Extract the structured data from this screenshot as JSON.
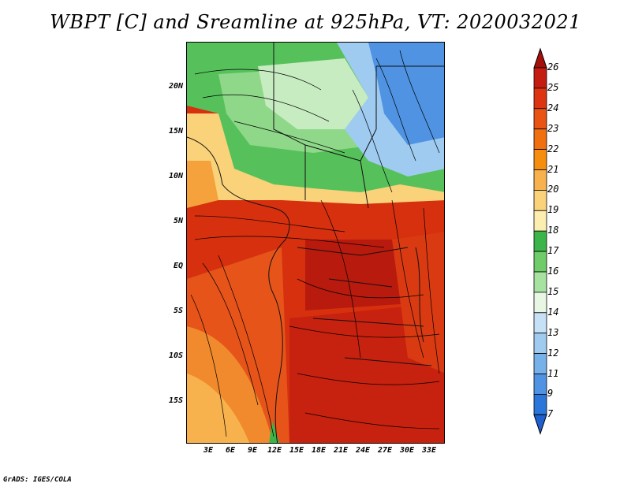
{
  "title": "WBPT [C] and Sreamline at 925hPa, VT: 2020032021",
  "credit": "GrADS: IGES/COLA",
  "map": {
    "lat_labels": [
      "20N",
      "15N",
      "10N",
      "5N",
      "EQ",
      "5S",
      "10S",
      "15S"
    ],
    "lon_labels": [
      "3E",
      "6E",
      "9E",
      "12E",
      "15E",
      "18E",
      "21E",
      "24E",
      "27E",
      "30E",
      "33E"
    ],
    "variable": "Wet-bulb potential temperature",
    "units": "C",
    "level": "925hPa"
  },
  "colorbar": {
    "labels": [
      "26",
      "25",
      "24",
      "23",
      "22",
      "21",
      "20",
      "19",
      "18",
      "17",
      "16",
      "15",
      "14",
      "13",
      "12",
      "11",
      "9",
      "7"
    ],
    "colors": [
      "#a50f0a",
      "#c51c12",
      "#dd3412",
      "#e95412",
      "#f06f0e",
      "#f58e0e",
      "#f7b24e",
      "#f9d27a",
      "#fbeeaf",
      "#3bb54a",
      "#6fcc69",
      "#a8e2a0",
      "#e7f7e4",
      "#c6e0f6",
      "#9fcbf0",
      "#77b1ea",
      "#4f93e2",
      "#2a76da",
      "#1f5fd0"
    ]
  }
}
